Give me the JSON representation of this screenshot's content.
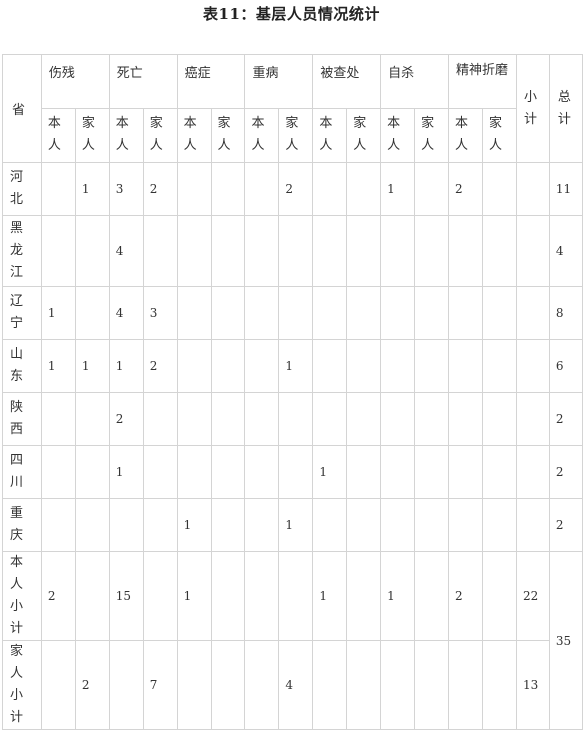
{
  "title": "表11：基层人员情况统计",
  "header": {
    "province": "省",
    "categories": [
      "伤残",
      "死亡",
      "癌症",
      "重病",
      "被查处",
      "自杀",
      "精神折磨"
    ],
    "self": "本人",
    "family": "家人",
    "subtotal": "小计",
    "total": "总计"
  },
  "rows": [
    {
      "name": "河北",
      "cells": [
        "",
        "1",
        "3",
        "2",
        "",
        "",
        "",
        "2",
        "",
        "",
        "1",
        "",
        "2",
        ""
      ],
      "subtotal": "",
      "total": "11"
    },
    {
      "name": "黑龙江",
      "cells": [
        "",
        "",
        "4",
        "",
        "",
        "",
        "",
        "",
        "",
        "",
        "",
        "",
        "",
        ""
      ],
      "subtotal": "",
      "total": "4"
    },
    {
      "name": "辽宁",
      "cells": [
        "1",
        "",
        "4",
        "3",
        "",
        "",
        "",
        "",
        "",
        "",
        "",
        "",
        "",
        ""
      ],
      "subtotal": "",
      "total": "8"
    },
    {
      "name": "山东",
      "cells": [
        "1",
        "1",
        "1",
        "2",
        "",
        "",
        "",
        "1",
        "",
        "",
        "",
        "",
        "",
        ""
      ],
      "subtotal": "",
      "total": "6"
    },
    {
      "name": "陕西",
      "cells": [
        "",
        "",
        "2",
        "",
        "",
        "",
        "",
        "",
        "",
        "",
        "",
        "",
        "",
        ""
      ],
      "subtotal": "",
      "total": "2"
    },
    {
      "name": "四川",
      "cells": [
        "",
        "",
        "1",
        "",
        "",
        "",
        "",
        "",
        "1",
        "",
        "",
        "",
        "",
        ""
      ],
      "subtotal": "",
      "total": "2"
    },
    {
      "name": "重庆",
      "cells": [
        "",
        "",
        "",
        "",
        "1",
        "",
        "",
        "1",
        "",
        "",
        "",
        "",
        "",
        ""
      ],
      "subtotal": "",
      "total": "2"
    }
  ],
  "self_subtotal_row": {
    "name": "本人小计",
    "cells": [
      "2",
      "",
      "15",
      "",
      "1",
      "",
      "",
      "",
      "1",
      "",
      "1",
      "",
      "2",
      ""
    ],
    "subtotal": "22"
  },
  "family_subtotal_row": {
    "name": "家人小计",
    "cells": [
      "",
      "2",
      "",
      "7",
      "",
      "",
      "",
      "4",
      "",
      "",
      "",
      "",
      "",
      ""
    ],
    "subtotal": "13"
  },
  "grand_total": "35"
}
